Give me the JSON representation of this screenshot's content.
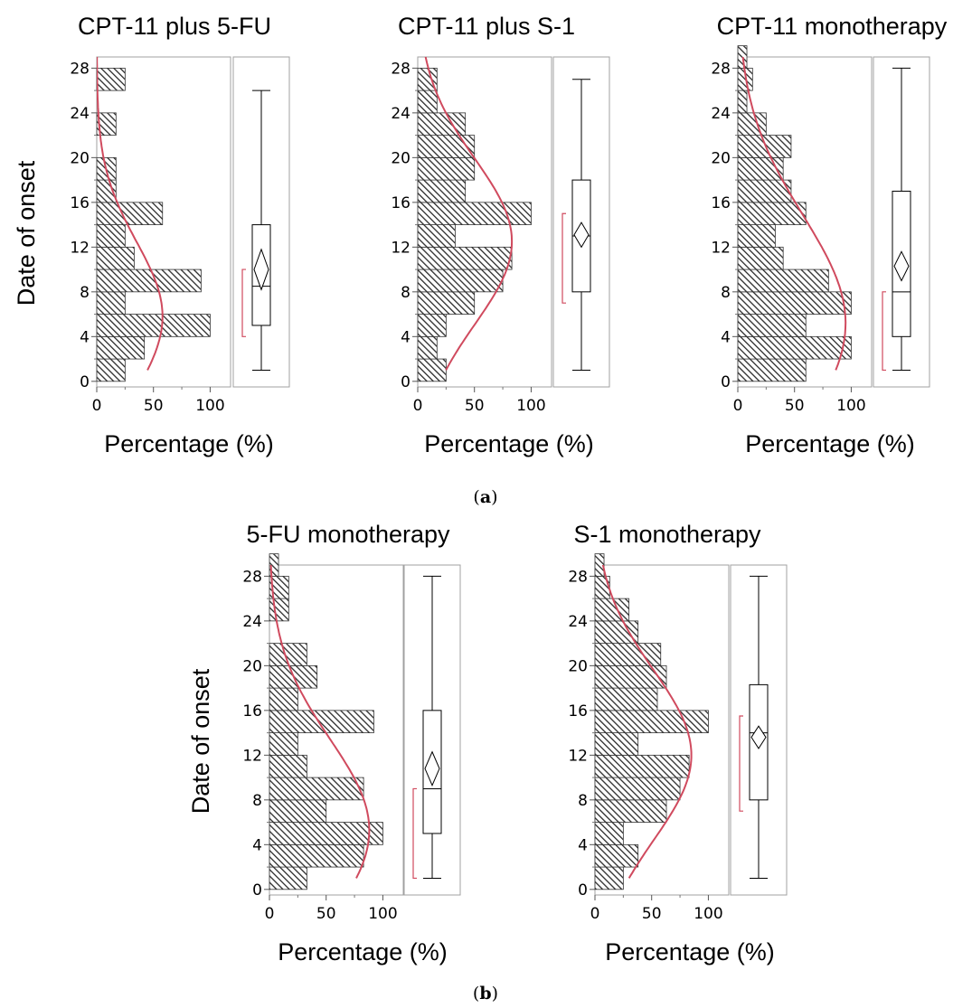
{
  "figure": {
    "captions": [
      {
        "open": "(",
        "letter": "a",
        "close": ")"
      },
      {
        "open": "(",
        "letter": "b",
        "close": ")"
      }
    ],
    "colors": {
      "curve": "#d04a5e",
      "bracket": "#d04a5e",
      "bar_fill": "hatched-diagonal",
      "frame": "#a0a0a0"
    }
  },
  "chart_data": [
    {
      "type": "bar",
      "orientation": "horizontal",
      "title": "CPT-11 plus 5-FU",
      "ylabel": "Date of onset",
      "xlabel": "Percentage (%)",
      "y_ticks": [
        0,
        4,
        8,
        12,
        16,
        20,
        24,
        28
      ],
      "x_ticks": [
        0,
        50,
        100
      ],
      "ylim": [
        -0.5,
        29
      ],
      "xlim": [
        0,
        118
      ],
      "bin_width": 2,
      "bins": [
        {
          "y": 0,
          "value": 25
        },
        {
          "y": 2,
          "value": 42
        },
        {
          "y": 4,
          "value": 100
        },
        {
          "y": 6,
          "value": 25
        },
        {
          "y": 8,
          "value": 92
        },
        {
          "y": 10,
          "value": 33
        },
        {
          "y": 12,
          "value": 25
        },
        {
          "y": 14,
          "value": 58
        },
        {
          "y": 16,
          "value": 17
        },
        {
          "y": 18,
          "value": 17
        },
        {
          "y": 20,
          "value": 0
        },
        {
          "y": 22,
          "value": 17
        },
        {
          "y": 24,
          "value": 0
        },
        {
          "y": 26,
          "value": 25
        }
      ],
      "normal_curve": {
        "peak_y": 5.8,
        "peak_value": 58
      },
      "boxplot": {
        "min": 1,
        "q1": 5,
        "median": 8.5,
        "q3": 14,
        "max": 26,
        "mean": 10,
        "mean_ci": [
          8.2,
          11.8
        ],
        "bracket": [
          4,
          10
        ]
      }
    },
    {
      "type": "bar",
      "orientation": "horizontal",
      "title": "CPT-11 plus S-1",
      "ylabel": "",
      "xlabel": "Percentage (%)",
      "y_ticks": [
        0,
        4,
        8,
        12,
        16,
        20,
        24,
        28
      ],
      "x_ticks": [
        0,
        50,
        100
      ],
      "ylim": [
        -0.5,
        29
      ],
      "xlim": [
        0,
        118
      ],
      "bin_width": 2,
      "bins": [
        {
          "y": 0,
          "value": 25
        },
        {
          "y": 2,
          "value": 17
        },
        {
          "y": 4,
          "value": 25
        },
        {
          "y": 6,
          "value": 50
        },
        {
          "y": 8,
          "value": 75
        },
        {
          "y": 10,
          "value": 83
        },
        {
          "y": 12,
          "value": 33
        },
        {
          "y": 14,
          "value": 100
        },
        {
          "y": 16,
          "value": 42
        },
        {
          "y": 18,
          "value": 50
        },
        {
          "y": 20,
          "value": 50
        },
        {
          "y": 22,
          "value": 42
        },
        {
          "y": 24,
          "value": 17
        },
        {
          "y": 26,
          "value": 17
        }
      ],
      "normal_curve": {
        "peak_y": 12.5,
        "peak_value": 83
      },
      "boxplot": {
        "min": 1,
        "q1": 8,
        "median": 13,
        "q3": 18,
        "max": 27,
        "mean": 13.1,
        "mean_ci": [
          12,
          14.2
        ],
        "bracket": [
          7,
          15
        ]
      }
    },
    {
      "type": "bar",
      "orientation": "horizontal",
      "title": "CPT-11 monotherapy",
      "ylabel": "",
      "xlabel": "Percentage (%)",
      "y_ticks": [
        0,
        4,
        8,
        12,
        16,
        20,
        24,
        28
      ],
      "x_ticks": [
        0,
        50,
        100
      ],
      "ylim": [
        -0.5,
        29
      ],
      "xlim": [
        0,
        118
      ],
      "bin_width": 2,
      "bins": [
        {
          "y": 0,
          "value": 60
        },
        {
          "y": 2,
          "value": 100
        },
        {
          "y": 4,
          "value": 60
        },
        {
          "y": 6,
          "value": 100
        },
        {
          "y": 8,
          "value": 80
        },
        {
          "y": 10,
          "value": 40
        },
        {
          "y": 12,
          "value": 33
        },
        {
          "y": 14,
          "value": 60
        },
        {
          "y": 16,
          "value": 47
        },
        {
          "y": 18,
          "value": 40
        },
        {
          "y": 20,
          "value": 47
        },
        {
          "y": 22,
          "value": 25
        },
        {
          "y": 24,
          "value": 8
        },
        {
          "y": 26,
          "value": 13
        },
        {
          "y": 28,
          "value": 8
        }
      ],
      "normal_curve": {
        "peak_y": 5.2,
        "peak_value": 95
      },
      "boxplot": {
        "min": 1,
        "q1": 4,
        "median": 8,
        "q3": 17,
        "max": 28,
        "mean": 10.3,
        "mean_ci": [
          9,
          11.6
        ],
        "bracket": [
          1,
          8
        ]
      }
    },
    {
      "type": "bar",
      "orientation": "horizontal",
      "title": "5-FU monotherapy",
      "ylabel": "Date of onset",
      "xlabel": "Percentage (%)",
      "y_ticks": [
        0,
        4,
        8,
        12,
        16,
        20,
        24,
        28
      ],
      "x_ticks": [
        0,
        50,
        100
      ],
      "ylim": [
        -0.5,
        29
      ],
      "xlim": [
        0,
        118
      ],
      "bin_width": 2,
      "bins": [
        {
          "y": 0,
          "value": 33
        },
        {
          "y": 2,
          "value": 83
        },
        {
          "y": 4,
          "value": 100
        },
        {
          "y": 6,
          "value": 50
        },
        {
          "y": 8,
          "value": 83
        },
        {
          "y": 10,
          "value": 33
        },
        {
          "y": 12,
          "value": 25
        },
        {
          "y": 14,
          "value": 92
        },
        {
          "y": 16,
          "value": 25
        },
        {
          "y": 18,
          "value": 42
        },
        {
          "y": 20,
          "value": 33
        },
        {
          "y": 22,
          "value": 0
        },
        {
          "y": 24,
          "value": 17
        },
        {
          "y": 26,
          "value": 17
        },
        {
          "y": 28,
          "value": 8
        }
      ],
      "normal_curve": {
        "peak_y": 5.3,
        "peak_value": 88
      },
      "boxplot": {
        "min": 1,
        "q1": 5,
        "median": 9,
        "q3": 16,
        "max": 28,
        "mean": 10.8,
        "mean_ci": [
          9.3,
          12.3
        ],
        "bracket": [
          1,
          9
        ]
      }
    },
    {
      "type": "bar",
      "orientation": "horizontal",
      "title": "S-1 monotherapy",
      "ylabel": "",
      "xlabel": "Percentage (%)",
      "y_ticks": [
        0,
        4,
        8,
        12,
        16,
        20,
        24,
        28
      ],
      "x_ticks": [
        0,
        50,
        100
      ],
      "ylim": [
        -0.5,
        29
      ],
      "xlim": [
        0,
        118
      ],
      "bin_width": 2,
      "bins": [
        {
          "y": 0,
          "value": 25
        },
        {
          "y": 2,
          "value": 38
        },
        {
          "y": 4,
          "value": 25
        },
        {
          "y": 6,
          "value": 63
        },
        {
          "y": 8,
          "value": 75
        },
        {
          "y": 10,
          "value": 83
        },
        {
          "y": 12,
          "value": 38
        },
        {
          "y": 14,
          "value": 100
        },
        {
          "y": 16,
          "value": 55
        },
        {
          "y": 18,
          "value": 63
        },
        {
          "y": 20,
          "value": 58
        },
        {
          "y": 22,
          "value": 38
        },
        {
          "y": 24,
          "value": 30
        },
        {
          "y": 26,
          "value": 13
        },
        {
          "y": 28,
          "value": 8
        }
      ],
      "normal_curve": {
        "peak_y": 12,
        "peak_value": 85
      },
      "boxplot": {
        "min": 1,
        "q1": 8,
        "median": 14,
        "q3": 18.3,
        "max": 28,
        "mean": 13.6,
        "mean_ci": [
          12.6,
          14.6
        ],
        "bracket": [
          7,
          15.5
        ]
      }
    }
  ]
}
